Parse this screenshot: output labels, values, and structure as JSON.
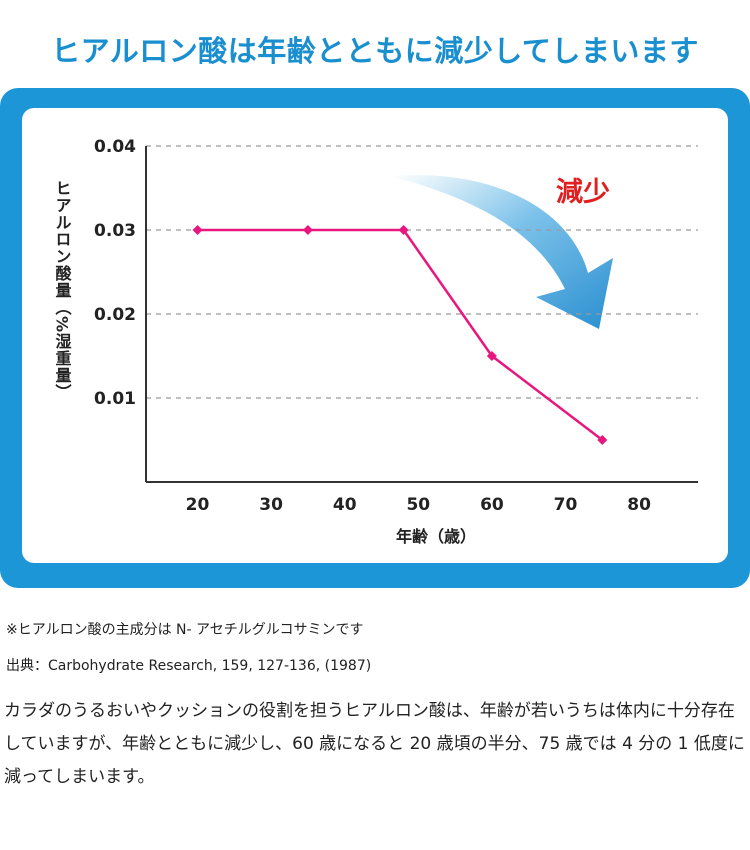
{
  "title": "ヒアルロン酸は年齢とともに減少してしまいます",
  "footnote": "※ヒアルロン酸の主成分は N- アセチルグルコサミンです",
  "source": "出典：Carbohydrate Research, 159, 127-136, (1987)",
  "body_text": "カラダのうるおいやクッションの役割を担うヒアルロン酸は、年齢が若いうちは体内に十分存在していますが、年齢とともに減少し、60 歳になると 20 歳頃の半分、75 歳では 4 分の 1 低度に減ってしまいます。",
  "colors": {
    "title": "#1a8fcf",
    "frame": "#1c96d6",
    "line": "#e8177f",
    "annotation": "#e02020",
    "arrow": "#2a8fd0"
  },
  "chart_data": {
    "type": "line",
    "xlabel": "年齢（歳）",
    "ylabel": "ヒアルロン酸量（%湿重量）",
    "xlim": [
      13,
      88
    ],
    "ylim": [
      0,
      0.04
    ],
    "x_ticks": [
      20,
      30,
      40,
      50,
      60,
      70,
      80
    ],
    "y_ticks": [
      0.01,
      0.02,
      0.03,
      0.04
    ],
    "y_tick_labels": [
      "0.01",
      "0.02",
      "0.03",
      "0.04"
    ],
    "grid": "horizontal-dashed",
    "series": [
      {
        "x": [
          20,
          35,
          48,
          60,
          75
        ],
        "y": [
          0.03,
          0.03,
          0.03,
          0.015,
          0.005
        ]
      }
    ],
    "annotation": {
      "text": "減少",
      "icon": "down-right-curved-arrow-icon"
    }
  }
}
